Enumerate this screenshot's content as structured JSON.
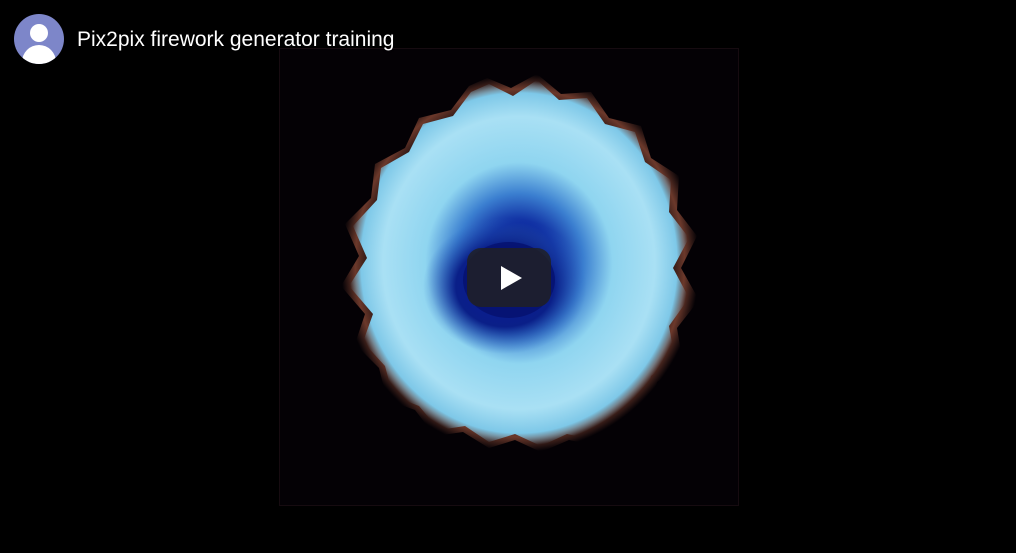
{
  "video": {
    "title": "Pix2pix firework generator training"
  },
  "avatar": {
    "icon": "user-avatar-icon",
    "color": "#7d86c9"
  },
  "play_button": {
    "icon": "play-icon",
    "background": "#212121"
  },
  "thumbnail": {
    "subject": "firework-burst",
    "colors": {
      "outer": "#8fd5f0",
      "mid": "#4fa8d8",
      "core": "#0a1a8a",
      "rim": "#c0664a",
      "background": "#040105"
    }
  }
}
